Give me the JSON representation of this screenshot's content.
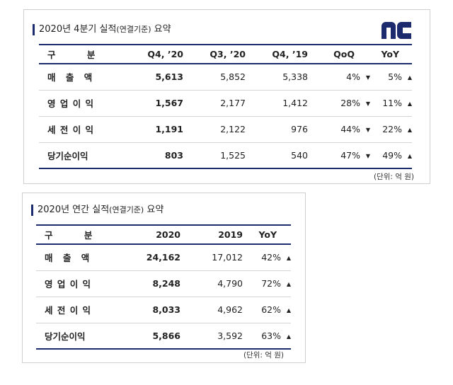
{
  "q4": {
    "title_main": "2020년 4분기 실적",
    "title_paren": "(연결기준)",
    "title_suffix": " 요약",
    "headers": [
      "구 분",
      "Q4, ’20",
      "Q3, ’20",
      "Q4, ’19",
      "QoQ",
      "YoY"
    ],
    "rows": [
      {
        "label": "매 출 액",
        "q4_20": "5,613",
        "q3_20": "5,852",
        "q4_19": "5,338",
        "qoq": "4%",
        "qoq_dir": "▼",
        "yoy": "5%",
        "yoy_dir": "▲"
      },
      {
        "label": "영 업 이 익",
        "q4_20": "1,567",
        "q3_20": "2,177",
        "q4_19": "1,412",
        "qoq": "28%",
        "qoq_dir": "▼",
        "yoy": "11%",
        "yoy_dir": "▲"
      },
      {
        "label": "세 전 이 익",
        "q4_20": "1,191",
        "q3_20": "2,122",
        "q4_19": "976",
        "qoq": "44%",
        "qoq_dir": "▼",
        "yoy": "22%",
        "yoy_dir": "▲"
      },
      {
        "label": "당기순이익",
        "q4_20": "803",
        "q3_20": "1,525",
        "q4_19": "540",
        "qoq": "47%",
        "qoq_dir": "▼",
        "yoy": "49%",
        "yoy_dir": "▲"
      }
    ],
    "unit": "(단위: 억 원)"
  },
  "annual": {
    "title_main": "2020년 연간 실적",
    "title_paren": "(연결기준)",
    "title_suffix": " 요약",
    "headers": [
      "구 분",
      "2020",
      "2019",
      "YoY"
    ],
    "rows": [
      {
        "label": "매 출 액",
        "y2020": "24,162",
        "y2019": "17,012",
        "yoy": "42%",
        "yoy_dir": "▲"
      },
      {
        "label": "영 업 이 익",
        "y2020": "8,248",
        "y2019": "4,790",
        "yoy": "72%",
        "yoy_dir": "▲"
      },
      {
        "label": "세 전 이 익",
        "y2020": "8,033",
        "y2019": "4,962",
        "yoy": "62%",
        "yoy_dir": "▲"
      },
      {
        "label": "당기순이익",
        "y2020": "5,866",
        "y2019": "3,592",
        "yoy": "63%",
        "yoy_dir": "▲"
      }
    ],
    "unit": "(단위: 억 원)"
  },
  "logo": {
    "icon": "nc-logo",
    "color": "#1c2b6d"
  }
}
